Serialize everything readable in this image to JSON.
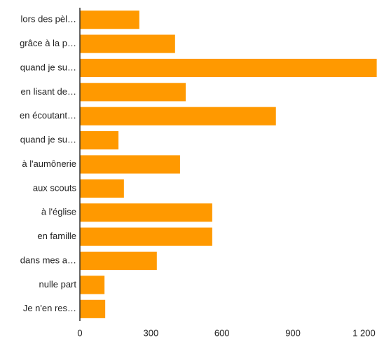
{
  "chart_data": {
    "type": "bar",
    "orientation": "horizontal",
    "categories": [
      "lors des pèl…",
      "grâce à la p…",
      "quand je su…",
      "en lisant de…",
      "en écoutant…",
      "quand je su…",
      "à l'aumônerie",
      "aux scouts",
      "à l'église",
      "en famille",
      "dans mes a…",
      "nulle part",
      "Je n'en res…"
    ],
    "values": [
      251,
      402,
      1254,
      447,
      828,
      163,
      423,
      186,
      559,
      559,
      325,
      104,
      107
    ],
    "color": "#ff9900",
    "xlim": [
      0,
      1255
    ],
    "xticks": [
      0,
      300,
      600,
      900,
      {
        "value": 1200,
        "label": "1 200"
      }
    ],
    "grid": false
  }
}
